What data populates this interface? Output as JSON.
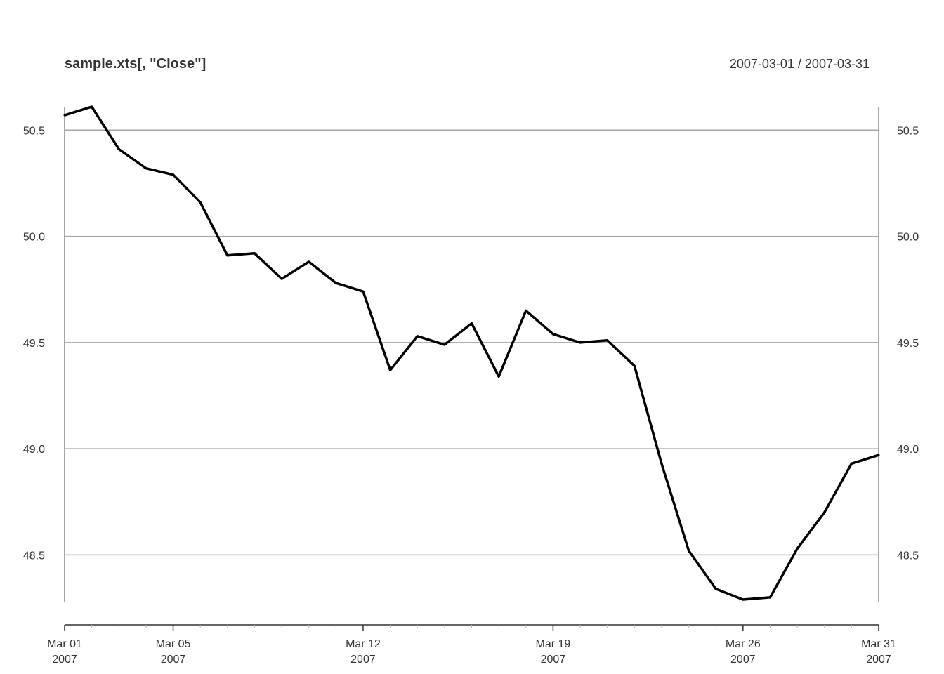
{
  "chart_data": {
    "type": "line",
    "title": "sample.xts[, \"Close\"]",
    "date_range": "2007-03-01 / 2007-03-31",
    "ylim": [
      48.28,
      50.61
    ],
    "grid": true,
    "line_color": "#000000",
    "grid_color": "#a6a6a6",
    "y_ticks": [
      "50.5",
      "50.0",
      "49.5",
      "49.0",
      "48.5"
    ],
    "x_ticks": [
      {
        "date": "2007-03-01",
        "label": "Mar 01",
        "year": "2007"
      },
      {
        "date": "2007-03-05",
        "label": "Mar 05",
        "year": "2007"
      },
      {
        "date": "2007-03-12",
        "label": "Mar 12",
        "year": "2007"
      },
      {
        "date": "2007-03-19",
        "label": "Mar 19",
        "year": "2007"
      },
      {
        "date": "2007-03-26",
        "label": "Mar 26",
        "year": "2007"
      },
      {
        "date": "2007-03-31",
        "label": "Mar 31",
        "year": "2007"
      }
    ],
    "series": [
      {
        "points": [
          {
            "x": "2007-03-01",
            "y": 50.57
          },
          {
            "x": "2007-03-02",
            "y": 50.61
          },
          {
            "x": "2007-03-03",
            "y": 50.41
          },
          {
            "x": "2007-03-04",
            "y": 50.32
          },
          {
            "x": "2007-03-05",
            "y": 50.29
          },
          {
            "x": "2007-03-06",
            "y": 50.16
          },
          {
            "x": "2007-03-07",
            "y": 49.91
          },
          {
            "x": "2007-03-08",
            "y": 49.92
          },
          {
            "x": "2007-03-09",
            "y": 49.8
          },
          {
            "x": "2007-03-10",
            "y": 49.88
          },
          {
            "x": "2007-03-11",
            "y": 49.78
          },
          {
            "x": "2007-03-12",
            "y": 49.74
          },
          {
            "x": "2007-03-13",
            "y": 49.37
          },
          {
            "x": "2007-03-14",
            "y": 49.53
          },
          {
            "x": "2007-03-15",
            "y": 49.49
          },
          {
            "x": "2007-03-16",
            "y": 49.59
          },
          {
            "x": "2007-03-17",
            "y": 49.34
          },
          {
            "x": "2007-03-18",
            "y": 49.65
          },
          {
            "x": "2007-03-19",
            "y": 49.54
          },
          {
            "x": "2007-03-20",
            "y": 49.5
          },
          {
            "x": "2007-03-21",
            "y": 49.51
          },
          {
            "x": "2007-03-22",
            "y": 49.39
          },
          {
            "x": "2007-03-23",
            "y": 48.93
          },
          {
            "x": "2007-03-24",
            "y": 48.52
          },
          {
            "x": "2007-03-25",
            "y": 48.34
          },
          {
            "x": "2007-03-26",
            "y": 48.29
          },
          {
            "x": "2007-03-27",
            "y": 48.3
          },
          {
            "x": "2007-03-28",
            "y": 48.53
          },
          {
            "x": "2007-03-29",
            "y": 48.7
          },
          {
            "x": "2007-03-30",
            "y": 48.93
          },
          {
            "x": "2007-03-31",
            "y": 48.97
          }
        ]
      }
    ]
  }
}
